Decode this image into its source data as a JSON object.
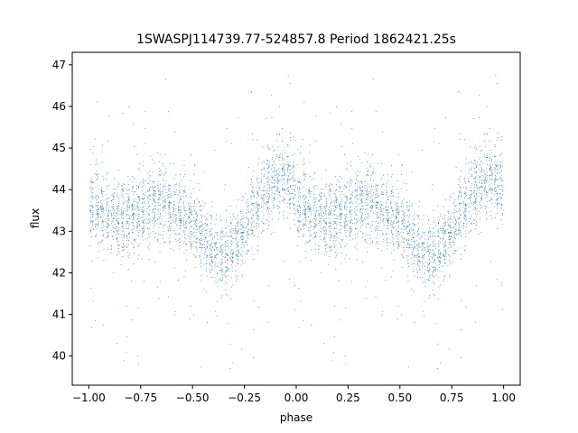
{
  "chart_data": {
    "type": "scatter",
    "title": "1SWASPJ114739.77-524857.8 Period 1862421.25s",
    "xlabel": "phase",
    "ylabel": "flux",
    "xlim": [
      -1.08,
      1.08
    ],
    "ylim": [
      39.3,
      47.3
    ],
    "x_ticks": [
      -1.0,
      -0.75,
      -0.5,
      -0.25,
      0.0,
      0.25,
      0.5,
      0.75,
      1.0
    ],
    "x_tick_labels": [
      "−1.00",
      "−0.75",
      "−0.50",
      "−0.25",
      "0.00",
      "0.25",
      "0.50",
      "0.75",
      "1.00"
    ],
    "y_ticks": [
      40,
      41,
      42,
      43,
      44,
      45,
      46,
      47
    ],
    "y_tick_labels": [
      "40",
      "41",
      "42",
      "43",
      "44",
      "45",
      "46",
      "47"
    ],
    "grid": false,
    "series_color": "#1f77b4",
    "trend": {
      "phase": [
        0.0,
        0.05,
        0.1,
        0.15,
        0.2,
        0.25,
        0.3,
        0.35,
        0.4,
        0.45,
        0.5,
        0.55,
        0.6,
        0.65,
        0.7,
        0.75,
        0.8,
        0.85,
        0.9,
        0.95,
        1.0
      ],
      "flux": [
        43.7,
        43.5,
        43.4,
        43.3,
        43.3,
        43.4,
        43.6,
        43.7,
        43.6,
        43.4,
        43.2,
        42.8,
        42.5,
        42.5,
        42.6,
        43.0,
        43.5,
        43.9,
        44.2,
        44.4,
        43.9
      ]
    },
    "scatter_sd": 0.45
  }
}
